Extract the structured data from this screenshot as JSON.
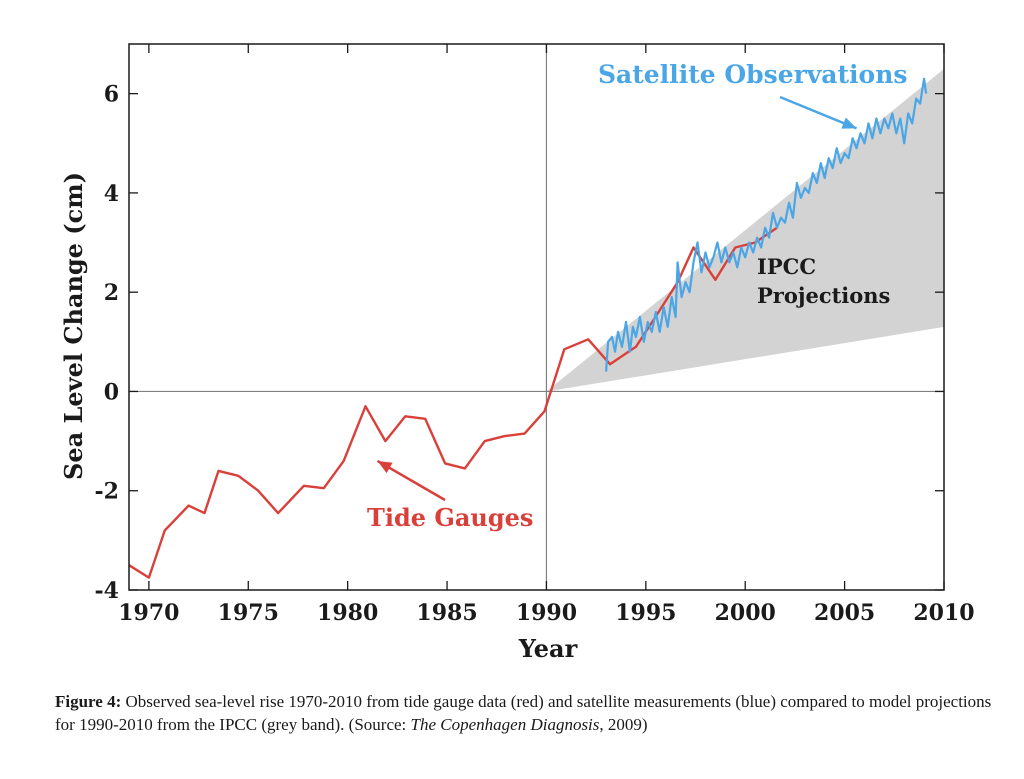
{
  "chart_data": {
    "type": "line",
    "xlabel": "Year",
    "ylabel": "Sea Level Change (cm)",
    "xlim": [
      1969,
      2010
    ],
    "ylim": [
      -4,
      7
    ],
    "x_ticks": [
      {
        "value": 1970,
        "label": "1970"
      },
      {
        "value": 1975,
        "label": "1975"
      },
      {
        "value": 1980,
        "label": "1980"
      },
      {
        "value": 1985,
        "label": "1985"
      },
      {
        "value": 1990,
        "label": "1990"
      },
      {
        "value": 1995,
        "label": "1995"
      },
      {
        "value": 2000,
        "label": "2000"
      },
      {
        "value": 2005,
        "label": "2005"
      },
      {
        "value": 2010,
        "label": "2010"
      }
    ],
    "y_ticks": [
      {
        "value": -4,
        "label": "-4"
      },
      {
        "value": -2,
        "label": "-2"
      },
      {
        "value": 0,
        "label": "0"
      },
      {
        "value": 2,
        "label": "2"
      },
      {
        "value": 4,
        "label": "4"
      },
      {
        "value": 6,
        "label": "6"
      }
    ],
    "reference_lines": {
      "x": 1990,
      "y": 0
    },
    "projection_band": {
      "label_line1": "IPCC",
      "label_line2": "Projections",
      "color": "#d3d3d3",
      "x_start": 1990,
      "y_start": 0,
      "x_end": 2010,
      "upper_end": 6.5,
      "lower_end": 1.3
    },
    "series": [
      {
        "name": "Tide Gauges",
        "color": "#d9403a",
        "points": [
          [
            1969.0,
            -3.5
          ],
          [
            1970.0,
            -3.75
          ],
          [
            1970.8,
            -2.8
          ],
          [
            1972.0,
            -2.3
          ],
          [
            1972.8,
            -2.45
          ],
          [
            1973.5,
            -1.6
          ],
          [
            1974.5,
            -1.7
          ],
          [
            1975.5,
            -2.0
          ],
          [
            1976.5,
            -2.45
          ],
          [
            1977.8,
            -1.9
          ],
          [
            1978.8,
            -1.95
          ],
          [
            1979.8,
            -1.4
          ],
          [
            1980.9,
            -0.3
          ],
          [
            1981.9,
            -1.0
          ],
          [
            1982.9,
            -0.5
          ],
          [
            1983.9,
            -0.55
          ],
          [
            1984.9,
            -1.45
          ],
          [
            1985.9,
            -1.55
          ],
          [
            1986.9,
            -1.0
          ],
          [
            1987.9,
            -0.9
          ],
          [
            1988.9,
            -0.85
          ],
          [
            1989.9,
            -0.4
          ],
          [
            1990.9,
            0.85
          ],
          [
            1992.1,
            1.05
          ],
          [
            1993.2,
            0.55
          ],
          [
            1994.5,
            0.9
          ],
          [
            1995.4,
            1.45
          ],
          [
            1996.6,
            2.2
          ],
          [
            1997.4,
            2.9
          ],
          [
            1998.5,
            2.25
          ],
          [
            1999.5,
            2.9
          ],
          [
            2000.5,
            3.0
          ],
          [
            2001.6,
            3.3
          ]
        ]
      },
      {
        "name": "Satellite Observations",
        "color": "#4aa6e6",
        "points": [
          [
            1993.0,
            0.4
          ],
          [
            1993.1,
            1.0
          ],
          [
            1993.3,
            1.1
          ],
          [
            1993.45,
            0.8
          ],
          [
            1993.6,
            1.2
          ],
          [
            1993.8,
            0.9
          ],
          [
            1994.0,
            1.4
          ],
          [
            1994.2,
            0.8
          ],
          [
            1994.35,
            1.3
          ],
          [
            1994.5,
            1.1
          ],
          [
            1994.7,
            1.5
          ],
          [
            1994.9,
            1.0
          ],
          [
            1995.1,
            1.4
          ],
          [
            1995.3,
            1.2
          ],
          [
            1995.5,
            1.6
          ],
          [
            1995.7,
            1.2
          ],
          [
            1995.9,
            1.7
          ],
          [
            1996.1,
            1.3
          ],
          [
            1996.3,
            1.9
          ],
          [
            1996.5,
            1.5
          ],
          [
            1996.6,
            2.6
          ],
          [
            1996.8,
            1.9
          ],
          [
            1997.0,
            2.2
          ],
          [
            1997.2,
            2.0
          ],
          [
            1997.4,
            2.6
          ],
          [
            1997.6,
            3.0
          ],
          [
            1997.8,
            2.4
          ],
          [
            1998.0,
            2.8
          ],
          [
            1998.2,
            2.5
          ],
          [
            1998.4,
            2.7
          ],
          [
            1998.6,
            3.0
          ],
          [
            1998.8,
            2.6
          ],
          [
            1999.0,
            2.9
          ],
          [
            1999.2,
            2.6
          ],
          [
            1999.4,
            2.8
          ],
          [
            1999.6,
            2.5
          ],
          [
            1999.8,
            2.9
          ],
          [
            2000.0,
            2.7
          ],
          [
            2000.2,
            3.0
          ],
          [
            2000.4,
            2.8
          ],
          [
            2000.6,
            3.1
          ],
          [
            2000.8,
            2.9
          ],
          [
            2001.0,
            3.3
          ],
          [
            2001.2,
            3.1
          ],
          [
            2001.4,
            3.6
          ],
          [
            2001.6,
            3.3
          ],
          [
            2001.8,
            3.5
          ],
          [
            2002.0,
            3.4
          ],
          [
            2002.2,
            3.8
          ],
          [
            2002.4,
            3.5
          ],
          [
            2002.6,
            4.2
          ],
          [
            2002.8,
            3.9
          ],
          [
            2003.0,
            4.1
          ],
          [
            2003.2,
            4.0
          ],
          [
            2003.4,
            4.4
          ],
          [
            2003.6,
            4.2
          ],
          [
            2003.8,
            4.6
          ],
          [
            2004.0,
            4.3
          ],
          [
            2004.2,
            4.7
          ],
          [
            2004.4,
            4.5
          ],
          [
            2004.6,
            4.9
          ],
          [
            2004.8,
            4.6
          ],
          [
            2005.0,
            4.8
          ],
          [
            2005.2,
            4.7
          ],
          [
            2005.4,
            5.1
          ],
          [
            2005.6,
            4.9
          ],
          [
            2005.8,
            5.2
          ],
          [
            2006.0,
            5.0
          ],
          [
            2006.2,
            5.4
          ],
          [
            2006.4,
            5.1
          ],
          [
            2006.6,
            5.5
          ],
          [
            2006.8,
            5.2
          ],
          [
            2007.0,
            5.5
          ],
          [
            2007.2,
            5.3
          ],
          [
            2007.4,
            5.6
          ],
          [
            2007.6,
            5.2
          ],
          [
            2007.8,
            5.5
          ],
          [
            2008.0,
            5.0
          ],
          [
            2008.2,
            5.6
          ],
          [
            2008.4,
            5.4
          ],
          [
            2008.6,
            5.9
          ],
          [
            2008.8,
            5.8
          ],
          [
            2009.0,
            6.3
          ],
          [
            2009.1,
            6.0
          ]
        ]
      }
    ],
    "annotations": [
      {
        "text": "Satellite Observations",
        "color": "#4aa6e6",
        "arrow_to": [
          2005.6,
          5.3
        ]
      },
      {
        "text": "Tide Gauges",
        "color": "#d9403a",
        "arrow_to": [
          1981.5,
          -1.4
        ]
      }
    ]
  },
  "caption": {
    "label": "Figure 4:",
    "text_part1": " Observed sea-level rise 1970-2010 from tide gauge data (red) and satellite measurements (blue) compared to model projections for 1990-2010 from the IPCC   (grey band). (Source: ",
    "source_italic": "The Copenhagen Diagnosis",
    "text_part2": ", 2009)"
  }
}
